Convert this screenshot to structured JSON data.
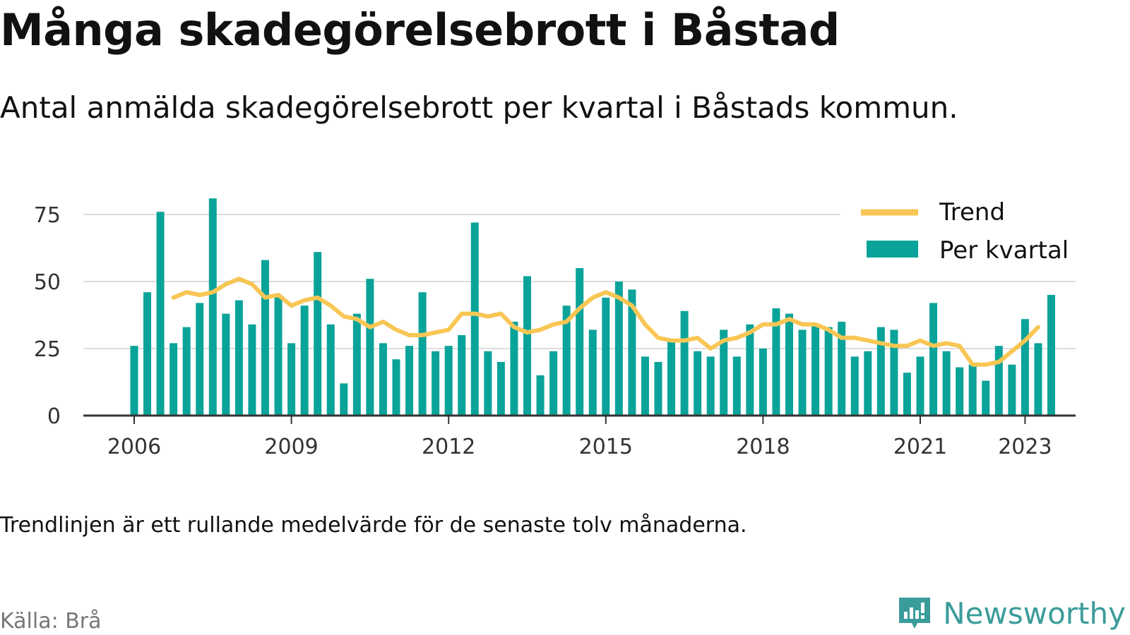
{
  "title": "Många skadegörelsebrott i Båstad",
  "subtitle": "Antal anmälda skadegörelsebrott per kvartal i Båstads kommun.",
  "note": "Trendlinjen är ett rullande medelvärde för de senaste tolv månaderna.",
  "source": "Källa: Brå",
  "brand": {
    "name": "Newsworthy",
    "icon": "newsworthy-logo-icon",
    "color": "#3a9c9a"
  },
  "colors": {
    "bar": "#0aa39a",
    "trend": "#f8c654",
    "grid": "#dddddd",
    "axis": "#333333"
  },
  "chart_data": {
    "type": "bar",
    "title": "Många skadegörelsebrott i Båstad",
    "xlabel": "",
    "ylabel": "",
    "ylim": [
      0,
      80
    ],
    "yticks": [
      0,
      25,
      50,
      75
    ],
    "xticks": [
      {
        "label": "2006",
        "year": 2006.0
      },
      {
        "label": "2009",
        "year": 2009.0
      },
      {
        "label": "2012",
        "year": 2012.0
      },
      {
        "label": "2015",
        "year": 2015.0
      },
      {
        "label": "2018",
        "year": 2018.0
      },
      {
        "label": "2021",
        "year": 2021.0
      },
      {
        "label": "2023",
        "year": 2023.0
      }
    ],
    "categories": [
      "2006 Q1",
      "2006 Q2",
      "2006 Q3",
      "2006 Q4",
      "2007 Q1",
      "2007 Q2",
      "2007 Q3",
      "2007 Q4",
      "2008 Q1",
      "2008 Q2",
      "2008 Q3",
      "2008 Q4",
      "2009 Q1",
      "2009 Q2",
      "2009 Q3",
      "2009 Q4",
      "2010 Q1",
      "2010 Q2",
      "2010 Q3",
      "2010 Q4",
      "2011 Q1",
      "2011 Q2",
      "2011 Q3",
      "2011 Q4",
      "2012 Q1",
      "2012 Q2",
      "2012 Q3",
      "2012 Q4",
      "2013 Q1",
      "2013 Q2",
      "2013 Q3",
      "2013 Q4",
      "2014 Q1",
      "2014 Q2",
      "2014 Q3",
      "2014 Q4",
      "2015 Q1",
      "2015 Q2",
      "2015 Q3",
      "2015 Q4",
      "2016 Q1",
      "2016 Q2",
      "2016 Q3",
      "2016 Q4",
      "2017 Q1",
      "2017 Q2",
      "2017 Q3",
      "2017 Q4",
      "2018 Q1",
      "2018 Q2",
      "2018 Q3",
      "2018 Q4",
      "2019 Q1",
      "2019 Q2",
      "2019 Q3",
      "2019 Q4",
      "2020 Q1",
      "2020 Q2",
      "2020 Q3",
      "2020 Q4",
      "2021 Q1",
      "2021 Q2",
      "2021 Q3",
      "2021 Q4",
      "2022 Q1",
      "2022 Q2",
      "2022 Q3",
      "2022 Q4",
      "2023 Q1",
      "2023 Q2",
      "2023 Q3"
    ],
    "series": [
      {
        "name": "Per kvartal",
        "type": "bar",
        "values": [
          26,
          46,
          76,
          27,
          33,
          42,
          81,
          38,
          43,
          34,
          58,
          45,
          27,
          41,
          61,
          34,
          12,
          38,
          51,
          27,
          21,
          26,
          46,
          24,
          26,
          30,
          72,
          24,
          20,
          35,
          52,
          15,
          24,
          41,
          55,
          32,
          44,
          50,
          47,
          22,
          20,
          28,
          39,
          24,
          22,
          32,
          22,
          34,
          25,
          40,
          38,
          32,
          34,
          33,
          35,
          22,
          24,
          33,
          32,
          16,
          22,
          42,
          24,
          18,
          19,
          13,
          26,
          19,
          36,
          27,
          45
        ]
      },
      {
        "name": "Trend",
        "type": "line",
        "values": [
          null,
          null,
          null,
          44,
          46,
          45,
          46,
          49,
          51,
          49,
          44,
          45,
          41,
          43,
          44,
          41,
          37,
          36,
          33,
          35,
          32,
          30,
          30,
          31,
          32,
          38,
          38,
          37,
          38,
          33,
          31,
          32,
          34,
          35,
          40,
          44,
          46,
          44,
          41,
          34,
          29,
          28,
          28,
          29,
          25,
          28,
          29,
          31,
          34,
          34,
          36,
          34,
          34,
          32,
          29,
          29,
          28,
          27,
          26,
          26,
          28,
          26,
          27,
          26,
          19,
          19,
          20,
          24,
          28,
          33,
          null
        ]
      }
    ],
    "legend": {
      "position": "top-right",
      "entries": [
        "Trend",
        "Per kvartal"
      ]
    },
    "grid": true
  }
}
